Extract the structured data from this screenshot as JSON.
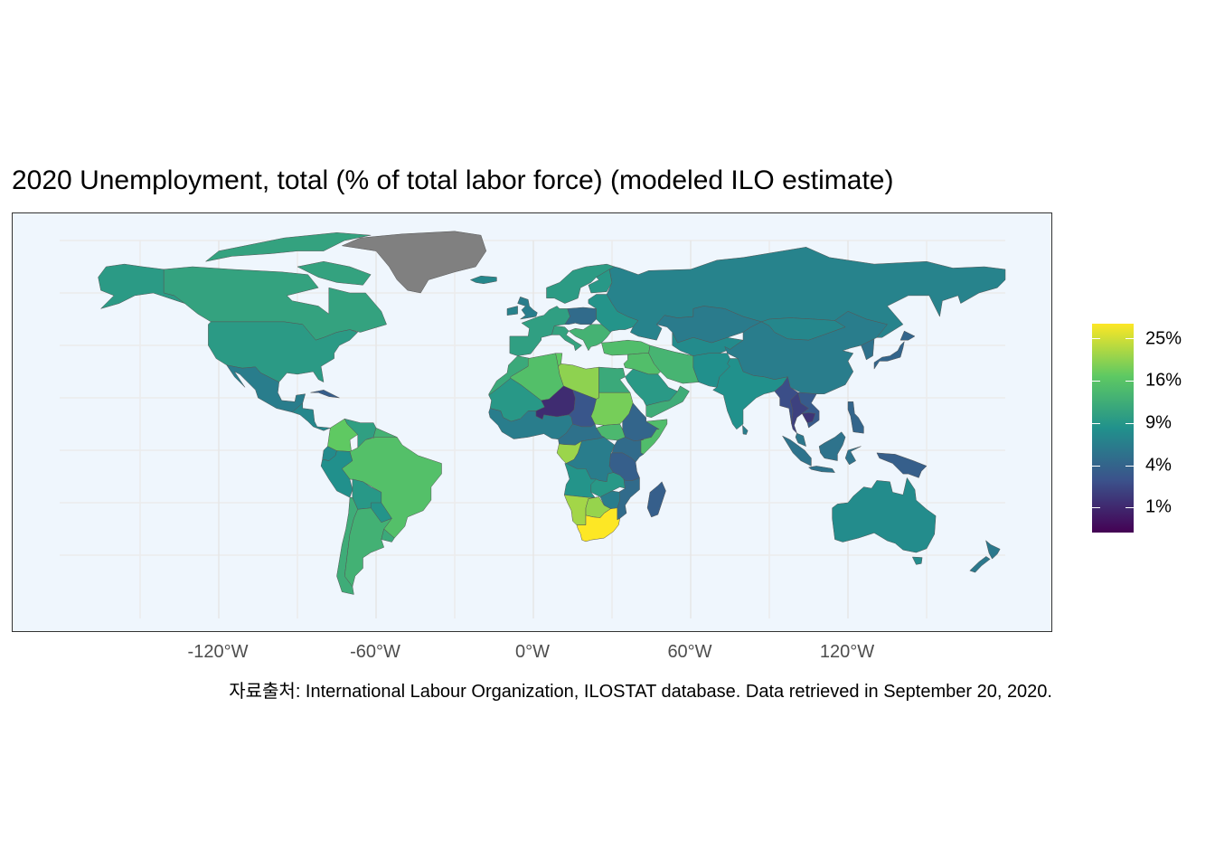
{
  "title": "2020 Unemployment, total (% of total labor force) (modeled ILO estimate)",
  "caption": "자료출처: International Labour Organization, ILOSTAT database. Data retrieved in September 20, 2020.",
  "x_axis": {
    "ticks": [
      "-120°W",
      "-60°W",
      "0°W",
      "60°W",
      "120°W"
    ],
    "tick_values": [
      -120,
      -60,
      0,
      60,
      120
    ]
  },
  "legend": {
    "labels": [
      "25%",
      "16%",
      "9%",
      "4%",
      "1%"
    ],
    "values": [
      25,
      16,
      9,
      4,
      1
    ],
    "colormap": "viridis",
    "scale": "sqrt",
    "no_data_color": "#808080",
    "ocean_color": "#eff6fd"
  },
  "chart_data": {
    "type": "choropleth",
    "projection": "equirectangular",
    "xlim": [
      -180,
      180
    ],
    "ylim": [
      -60,
      85
    ],
    "regions": [
      {
        "name": "Canada",
        "value": 9.5
      },
      {
        "name": "United States",
        "value": 8.3
      },
      {
        "name": "Mexico",
        "value": 5.0
      },
      {
        "name": "Greenland",
        "value": null
      },
      {
        "name": "Brazil",
        "value": 14.4
      },
      {
        "name": "Argentina",
        "value": 11.7
      },
      {
        "name": "Colombia",
        "value": 16.1
      },
      {
        "name": "Peru",
        "value": 7.0
      },
      {
        "name": "Chile",
        "value": 11.0
      },
      {
        "name": "Venezuela",
        "value": 9.0
      },
      {
        "name": "Russia",
        "value": 5.6
      },
      {
        "name": "China",
        "value": 5.0
      },
      {
        "name": "India",
        "value": 7.1
      },
      {
        "name": "Kazakhstan",
        "value": 4.9
      },
      {
        "name": "Mongolia",
        "value": 6.0
      },
      {
        "name": "Australia",
        "value": 6.6
      },
      {
        "name": "South Africa",
        "value": 28.5
      },
      {
        "name": "Libya",
        "value": 19.4
      },
      {
        "name": "Sudan",
        "value": 17.7
      },
      {
        "name": "Niger",
        "value": 0.5
      },
      {
        "name": "Algeria",
        "value": 14.2
      },
      {
        "name": "Egypt",
        "value": 10.5
      },
      {
        "name": "Saudi Arabia",
        "value": 8.2
      },
      {
        "name": "Iran",
        "value": 12.2
      },
      {
        "name": "Turkey",
        "value": 13.9
      },
      {
        "name": "Thailand",
        "value": 1.1
      },
      {
        "name": "Cambodia",
        "value": 0.7
      },
      {
        "name": "Indonesia",
        "value": 4.1
      },
      {
        "name": "Japan",
        "value": 3.0
      },
      {
        "name": "DR Congo",
        "value": 5.0
      },
      {
        "name": "Ethiopia",
        "value": 3.0
      },
      {
        "name": "Somalia",
        "value": 13.8
      },
      {
        "name": "Madagascar",
        "value": 2.6
      },
      {
        "name": "Namibia",
        "value": 21.0
      },
      {
        "name": "Botswana",
        "value": 20.0
      },
      {
        "name": "Gabon",
        "value": 20.4
      },
      {
        "name": "Tanzania",
        "value": 2.6
      },
      {
        "name": "New Zealand",
        "value": 4.6
      },
      {
        "name": "Papua New Guinea",
        "value": 2.6
      }
    ]
  }
}
